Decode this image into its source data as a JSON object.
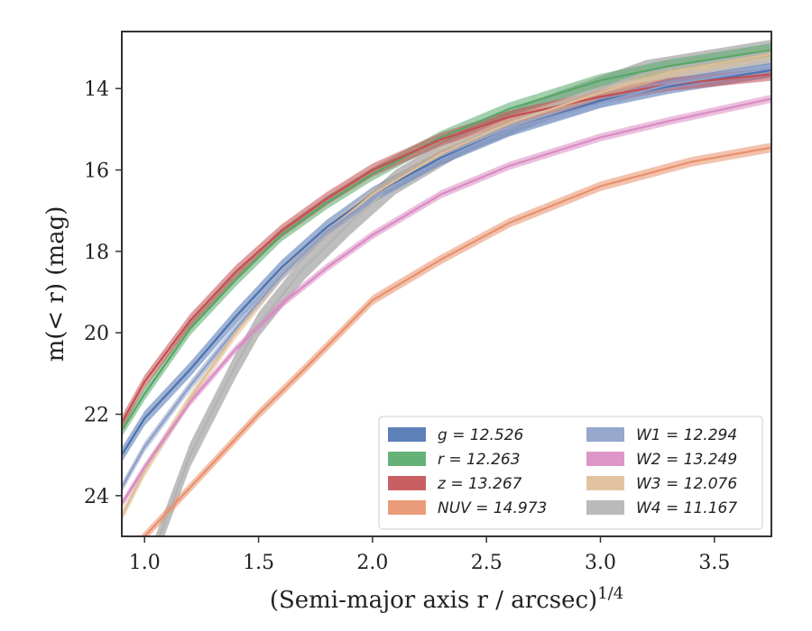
{
  "chart_data": {
    "type": "line",
    "xlabel": "(Semi-major axis r / arcsec)",
    "xlabel_sup": "1/4",
    "ylabel": "m(< r) (mag)",
    "xlim": [
      0.9,
      3.75
    ],
    "ylim": [
      25.0,
      12.6
    ],
    "y_inverted": true,
    "grid": false,
    "legend_position": "lower-right",
    "x_ticks": [
      1.0,
      1.5,
      2.0,
      2.5,
      3.0,
      3.5
    ],
    "x_tick_labels": [
      "1.0",
      "1.5",
      "2.0",
      "2.5",
      "3.0",
      "3.5"
    ],
    "y_ticks": [
      14,
      16,
      18,
      20,
      22,
      24
    ],
    "y_tick_labels": [
      "14",
      "16",
      "18",
      "20",
      "22",
      "24"
    ],
    "series": [
      {
        "name": "g = 12.526",
        "color": "#4c72b0",
        "band_width": 0.18,
        "x": [
          0.9,
          1.0,
          1.2,
          1.4,
          1.6,
          1.8,
          2.0,
          2.3,
          2.6,
          3.0,
          3.3,
          3.75
        ],
        "y": [
          23.0,
          22.1,
          20.9,
          19.6,
          18.4,
          17.4,
          16.6,
          15.7,
          15.0,
          14.3,
          13.95,
          13.55
        ]
      },
      {
        "name": "r = 12.263",
        "color": "#55a868",
        "band_width": 0.16,
        "x": [
          0.9,
          1.0,
          1.2,
          1.4,
          1.6,
          1.8,
          2.0,
          2.3,
          2.6,
          3.0,
          3.3,
          3.75
        ],
        "y": [
          22.4,
          21.5,
          19.9,
          18.7,
          17.6,
          16.8,
          16.1,
          15.2,
          14.5,
          13.8,
          13.45,
          13.05
        ]
      },
      {
        "name": "z = 13.267",
        "color": "#c44e52",
        "band_width": 0.16,
        "x": [
          0.9,
          1.0,
          1.2,
          1.4,
          1.6,
          1.8,
          2.0,
          2.3,
          2.6,
          3.0,
          3.3,
          3.75
        ],
        "y": [
          22.2,
          21.2,
          19.7,
          18.5,
          17.5,
          16.7,
          16.0,
          15.25,
          14.7,
          14.2,
          13.9,
          13.65
        ]
      },
      {
        "name": "NUV = 14.973",
        "color": "#e8906c",
        "band_width": 0.12,
        "x": [
          0.9,
          1.0,
          1.2,
          1.5,
          1.7,
          2.0,
          2.3,
          2.6,
          3.0,
          3.4,
          3.75
        ],
        "y": [
          25.6,
          25.0,
          23.8,
          22.0,
          20.9,
          19.2,
          18.2,
          17.3,
          16.4,
          15.8,
          15.45
        ]
      },
      {
        "name": "W1 = 12.294",
        "color": "#8c9fc8",
        "band_width": 0.12,
        "x": [
          0.9,
          1.0,
          1.2,
          1.4,
          1.6,
          1.8,
          2.0,
          2.3,
          2.6,
          3.0,
          3.3,
          3.75
        ],
        "y": [
          23.8,
          22.8,
          21.3,
          19.9,
          18.6,
          17.5,
          16.7,
          15.75,
          15.0,
          14.35,
          13.9,
          13.5
        ]
      },
      {
        "name": "W2 = 13.249",
        "color": "#da8bc3",
        "band_width": 0.1,
        "x": [
          0.9,
          1.0,
          1.2,
          1.4,
          1.6,
          1.8,
          2.0,
          2.3,
          2.6,
          3.0,
          3.3,
          3.75
        ],
        "y": [
          24.2,
          23.3,
          21.7,
          20.4,
          19.3,
          18.4,
          17.6,
          16.6,
          15.9,
          15.2,
          14.8,
          14.25
        ]
      },
      {
        "name": "W3 = 12.076",
        "color": "#dfbd96",
        "band_width": 0.14,
        "x": [
          0.9,
          1.0,
          1.2,
          1.4,
          1.6,
          1.8,
          2.0,
          2.3,
          2.6,
          3.0,
          3.3,
          3.75
        ],
        "y": [
          24.5,
          23.4,
          21.6,
          20.0,
          18.6,
          17.5,
          16.6,
          15.6,
          14.85,
          14.1,
          13.6,
          13.15
        ]
      },
      {
        "name": "W4 = 11.167",
        "color": "#b3b3b3",
        "band_width": 0.3,
        "x": [
          0.9,
          1.0,
          1.1,
          1.2,
          1.3,
          1.4,
          1.5,
          1.7,
          1.9,
          2.1,
          2.4,
          2.8,
          3.2,
          3.75
        ],
        "y": [
          27.5,
          26.0,
          24.5,
          23.0,
          21.9,
          20.8,
          19.8,
          18.4,
          17.3,
          16.3,
          15.3,
          14.4,
          13.6,
          13.1
        ]
      }
    ],
    "legend_columns": [
      [
        "g = 12.526",
        "r = 12.263",
        "z = 13.267",
        "NUV = 14.973"
      ],
      [
        "W1 = 12.294",
        "W2 = 13.249",
        "W3 = 12.076",
        "W4 = 11.167"
      ]
    ]
  }
}
